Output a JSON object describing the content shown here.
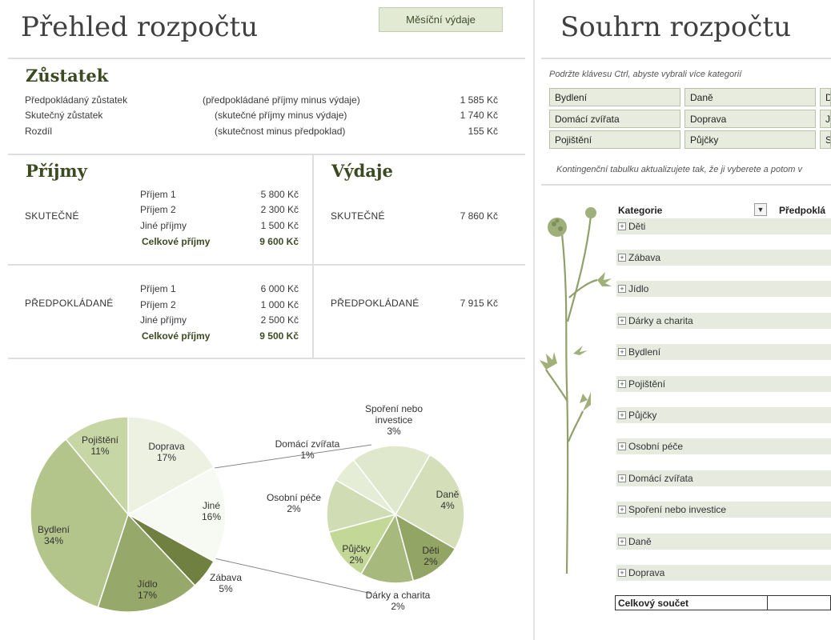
{
  "left": {
    "title": "Přehled rozpočtu",
    "monthly_button": "Měsíční výdaje",
    "balance": {
      "heading": "Zůstatek",
      "rows": [
        {
          "label": "Předpokládaný zůstatek",
          "note": "(předpokládané příjmy minus výdaje)",
          "value": "1 585 Kč"
        },
        {
          "label": "Skutečný zůstatek",
          "note": "(skutečné příjmy minus výdaje)",
          "value": "1 740 Kč"
        },
        {
          "label": "Rozdíl",
          "note": "(skutečnost minus předpoklad)",
          "value": "155 Kč"
        }
      ]
    },
    "income": {
      "heading": "Příjmy",
      "actual_label": "SKUTEČNÉ",
      "planned_label": "PŘEDPOKLÁDANÉ",
      "actual": [
        {
          "label": "Příjem 1",
          "value": "5 800 Kč"
        },
        {
          "label": "Příjem 2",
          "value": "2 300 Kč"
        },
        {
          "label": "Jiné příjmy",
          "value": "1 500 Kč"
        }
      ],
      "actual_total": {
        "label": "Celkové příjmy",
        "value": "9 600 Kč"
      },
      "planned": [
        {
          "label": "Příjem 1",
          "value": "6 000 Kč"
        },
        {
          "label": "Příjem 2",
          "value": "1 000 Kč"
        },
        {
          "label": "Jiné příjmy",
          "value": "2 500 Kč"
        }
      ],
      "planned_total": {
        "label": "Celkové příjmy",
        "value": "9 500 Kč"
      }
    },
    "expenses": {
      "heading": "Výdaje",
      "actual_label": "SKUTEČNÉ",
      "actual_value": "7 860 Kč",
      "planned_label": "PŘEDPOKLÁDANÉ",
      "planned_value": "7 915 Kč"
    }
  },
  "chart_data": {
    "type": "pie",
    "title": "",
    "main_pie": [
      {
        "label": "Doprava",
        "value": 17
      },
      {
        "label": "Jiné",
        "value": 16
      },
      {
        "label": "Zábava",
        "value": 5
      },
      {
        "label": "Jídlo",
        "value": 17
      },
      {
        "label": "Bydlení",
        "value": 34
      },
      {
        "label": "Pojištění",
        "value": 11
      }
    ],
    "secondary_pie": [
      {
        "label": "Daně",
        "value": 4
      },
      {
        "label": "Děti",
        "value": 2
      },
      {
        "label": "Dárky a charita",
        "value": 2
      },
      {
        "label": "Půjčky",
        "value": 2
      },
      {
        "label": "Osobní péče",
        "value": 2
      },
      {
        "label": "Domácí zvířata",
        "value": 1
      },
      {
        "label": "Spoření nebo investice",
        "value": 3
      }
    ],
    "label_lines": {
      "Doprava": [
        "Doprava",
        "17%"
      ],
      "Jiné": [
        "Jiné",
        "16%"
      ],
      "Zábava": [
        "Zábava",
        "5%"
      ],
      "Jídlo": [
        "Jídlo",
        "17%"
      ],
      "Bydlení": [
        "Bydlení",
        "34%"
      ],
      "Pojištění": [
        "Pojištění",
        "11%"
      ],
      "Daně": [
        "Daně",
        "4%"
      ],
      "Děti": [
        "Děti",
        "2%"
      ],
      "Dárky a charita": [
        "Dárky a charita",
        "2%"
      ],
      "Půjčky": [
        "Půjčky",
        "2%"
      ],
      "Osobní péče": [
        "Osobní péče",
        "2%"
      ],
      "Domácí zvířata": [
        "Domácí zvířata",
        "1%"
      ],
      "Spoření nebo investice": [
        "Spoření nebo",
        "investice",
        "3%"
      ]
    }
  },
  "right": {
    "title": "Souhrn rozpočtu",
    "hint": "Podržte klávesu Ctrl, abyste vybrali více kategorií",
    "slicer_buttons": [
      [
        "Bydlení",
        "Daně",
        "D"
      ],
      [
        "Domácí zvířata",
        "Doprava",
        "J"
      ],
      [
        "Pojištění",
        "Půjčky",
        "S"
      ]
    ],
    "refresh_hint": "Kontingenční tabulku aktualizujete tak, že ji vyberete a potom v",
    "pivot": {
      "col_category": "Kategorie",
      "col_planned": "Předpoklá",
      "rows": [
        "Děti",
        "Zábava",
        "Jídlo",
        "Dárky a charita",
        "Bydlení",
        "Pojištění",
        "Půjčky",
        "Osobní péče",
        "Domácí zvířata",
        "Spoření nebo investice",
        "Daně",
        "Doprava"
      ],
      "total": "Celkový součet"
    }
  },
  "colors": {
    "accent_green": "#3c4a22",
    "slicer_bg": "#e8ecdf",
    "row_bg": "#e6eadf",
    "plant": "#8fa06a"
  }
}
